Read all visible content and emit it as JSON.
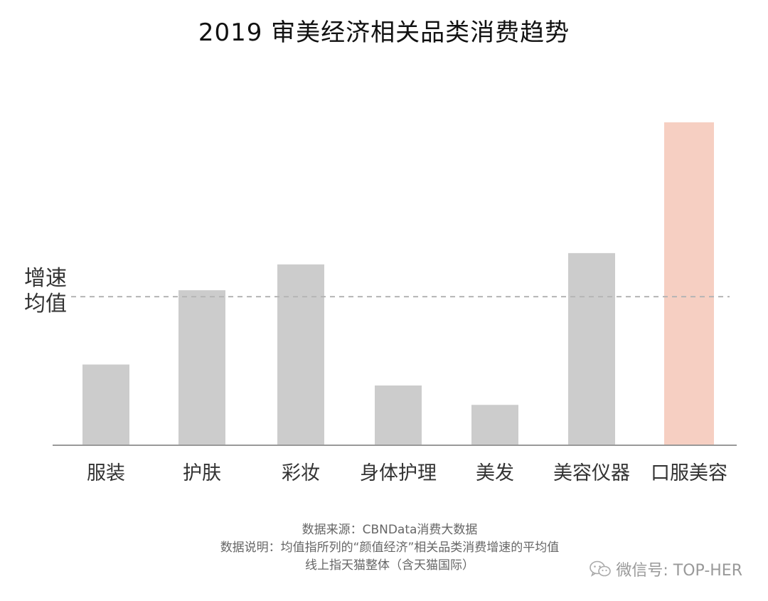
{
  "title": "2019 审美经济相关品类消费趋势",
  "avg_label_line1": "增速",
  "avg_label_line2": "均值",
  "footnotes": {
    "line1": "数据来源：CBNData消费大数据",
    "line2": "数据说明：均值指所列的“颜值经济”相关品类消费增速的平均值",
    "line3": "线上指天猫整体（含天猫国际）"
  },
  "watermark": "微信号: TOP-HER",
  "icons": {
    "watermark_icon": "wechat-icon"
  },
  "chart_data": {
    "type": "bar",
    "categories": [
      "服装",
      "护肤",
      "彩妆",
      "身体护理",
      "美发",
      "美容仪器",
      "口服美容"
    ],
    "values": [
      25,
      48,
      56,
      18.5,
      12.5,
      59.5,
      100
    ],
    "average": 46,
    "ylim": [
      0,
      100
    ],
    "highlight_index": 6,
    "colors": {
      "bar": "#cccccc",
      "highlight": "#f6cfc2",
      "average_line": "#b5b5b5",
      "axis": "#999999"
    },
    "grid": false
  }
}
